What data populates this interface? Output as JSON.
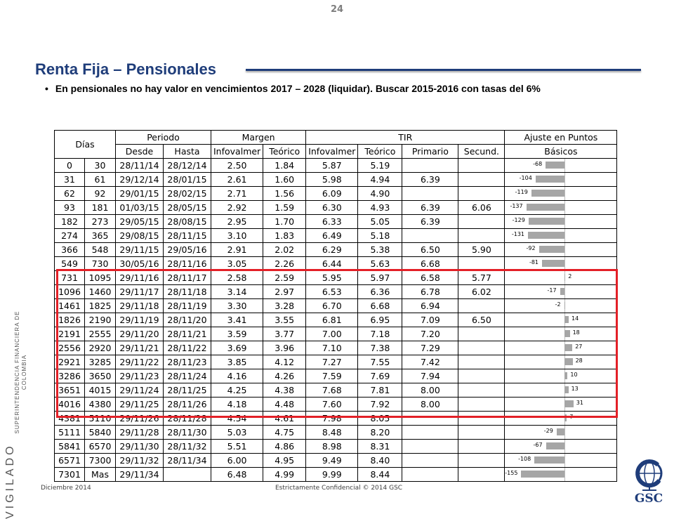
{
  "slide": {
    "page_number": "24",
    "title": "Renta Fija – Pensionales",
    "bullet": "En pensionales no hay valor en vencimientos 2017 – 2028 (liquidar). Buscar 2015-2016 con tasas del 6%",
    "footer_left": "Diciembre 2014",
    "footer_center": "Estrictamente Confidencial © 2014 GSC",
    "logo_text": "GSC",
    "side_vigilado": "VIGILADO",
    "side_super": "SUPERINTENDENCIA FINANCIERA DE COLOMBIA"
  },
  "table": {
    "headers": {
      "dias": "Días",
      "periodo": "Periodo",
      "margen": "Margen",
      "tir": "TIR",
      "ajuste": "Ajuste en Puntos",
      "basicos": "Básicos",
      "desde": "Desde",
      "hasta": "Hasta",
      "infovalmer": "Infovalmer",
      "teorico": "Teórico",
      "infovalmer2": "Infovalmer",
      "teorico2": "Teórico",
      "primario": "Primario",
      "secund": "Secund."
    },
    "rows": [
      {
        "d1": "0",
        "d2": "30",
        "desde": "28/11/14",
        "hasta": "28/12/14",
        "mi": "2.50",
        "mt": "1.84",
        "ti": "5.87",
        "tt": "5.19",
        "tp": "",
        "ts": "",
        "adj": "-68",
        "adjv": -68
      },
      {
        "d1": "31",
        "d2": "61",
        "desde": "29/12/14",
        "hasta": "28/01/15",
        "mi": "2.61",
        "mt": "1.60",
        "ti": "5.98",
        "tt": "4.94",
        "tp": "6.39",
        "ts": "",
        "adj": "-104",
        "adjv": -104
      },
      {
        "d1": "62",
        "d2": "92",
        "desde": "29/01/15",
        "hasta": "28/02/15",
        "mi": "2.71",
        "mt": "1.56",
        "ti": "6.09",
        "tt": "4.90",
        "tp": "",
        "ts": "",
        "adj": "-119",
        "adjv": -119
      },
      {
        "d1": "93",
        "d2": "181",
        "desde": "01/03/15",
        "hasta": "28/05/15",
        "mi": "2.92",
        "mt": "1.59",
        "ti": "6.30",
        "tt": "4.93",
        "tp": "6.39",
        "ts": "6.06",
        "adj": "-137",
        "adjv": -137
      },
      {
        "d1": "182",
        "d2": "273",
        "desde": "29/05/15",
        "hasta": "28/08/15",
        "mi": "2.95",
        "mt": "1.70",
        "ti": "6.33",
        "tt": "5.05",
        "tp": "6.39",
        "ts": "",
        "adj": "-129",
        "adjv": -129
      },
      {
        "d1": "274",
        "d2": "365",
        "desde": "29/08/15",
        "hasta": "28/11/15",
        "mi": "3.10",
        "mt": "1.83",
        "ti": "6.49",
        "tt": "5.18",
        "tp": "",
        "ts": "",
        "adj": "-131",
        "adjv": -131
      },
      {
        "d1": "366",
        "d2": "548",
        "desde": "29/11/15",
        "hasta": "29/05/16",
        "mi": "2.91",
        "mt": "2.02",
        "ti": "6.29",
        "tt": "5.38",
        "tp": "6.50",
        "ts": "5.90",
        "adj": "-92",
        "adjv": -92
      },
      {
        "d1": "549",
        "d2": "730",
        "desde": "30/05/16",
        "hasta": "28/11/16",
        "mi": "3.05",
        "mt": "2.26",
        "ti": "6.44",
        "tt": "5.63",
        "tp": "6.68",
        "ts": "",
        "adj": "-81",
        "adjv": -81
      },
      {
        "d1": "731",
        "d2": "1095",
        "desde": "29/11/16",
        "hasta": "28/11/17",
        "mi": "2.58",
        "mt": "2.59",
        "ti": "5.95",
        "tt": "5.97",
        "tp": "6.58",
        "ts": "5.77",
        "adj": "2",
        "adjv": 2
      },
      {
        "d1": "1096",
        "d2": "1460",
        "desde": "29/11/17",
        "hasta": "28/11/18",
        "mi": "3.14",
        "mt": "2.97",
        "ti": "6.53",
        "tt": "6.36",
        "tp": "6.78",
        "ts": "6.02",
        "adj": "-17",
        "adjv": -17
      },
      {
        "d1": "1461",
        "d2": "1825",
        "desde": "29/11/18",
        "hasta": "28/11/19",
        "mi": "3.30",
        "mt": "3.28",
        "ti": "6.70",
        "tt": "6.68",
        "tp": "6.94",
        "ts": "",
        "adj": "-2",
        "adjv": -2
      },
      {
        "d1": "1826",
        "d2": "2190",
        "desde": "29/11/19",
        "hasta": "28/11/20",
        "mi": "3.41",
        "mt": "3.55",
        "ti": "6.81",
        "tt": "6.95",
        "tp": "7.09",
        "ts": "6.50",
        "adj": "14",
        "adjv": 14
      },
      {
        "d1": "2191",
        "d2": "2555",
        "desde": "29/11/20",
        "hasta": "28/11/21",
        "mi": "3.59",
        "mt": "3.77",
        "ti": "7.00",
        "tt": "7.18",
        "tp": "7.20",
        "ts": "",
        "adj": "18",
        "adjv": 18
      },
      {
        "d1": "2556",
        "d2": "2920",
        "desde": "29/11/21",
        "hasta": "28/11/22",
        "mi": "3.69",
        "mt": "3.96",
        "ti": "7.10",
        "tt": "7.38",
        "tp": "7.29",
        "ts": "",
        "adj": "27",
        "adjv": 27
      },
      {
        "d1": "2921",
        "d2": "3285",
        "desde": "29/11/22",
        "hasta": "28/11/23",
        "mi": "3.85",
        "mt": "4.12",
        "ti": "7.27",
        "tt": "7.55",
        "tp": "7.42",
        "ts": "",
        "adj": "28",
        "adjv": 28
      },
      {
        "d1": "3286",
        "d2": "3650",
        "desde": "29/11/23",
        "hasta": "28/11/24",
        "mi": "4.16",
        "mt": "4.26",
        "ti": "7.59",
        "tt": "7.69",
        "tp": "7.94",
        "ts": "",
        "adj": "10",
        "adjv": 10
      },
      {
        "d1": "3651",
        "d2": "4015",
        "desde": "29/11/24",
        "hasta": "28/11/25",
        "mi": "4.25",
        "mt": "4.38",
        "ti": "7.68",
        "tt": "7.81",
        "tp": "8.00",
        "ts": "",
        "adj": "13",
        "adjv": 13
      },
      {
        "d1": "4016",
        "d2": "4380",
        "desde": "29/11/25",
        "hasta": "28/11/26",
        "mi": "4.18",
        "mt": "4.48",
        "ti": "7.60",
        "tt": "7.92",
        "tp": "8.00",
        "ts": "",
        "adj": "31",
        "adjv": 31
      },
      {
        "d1": "4381",
        "d2": "5110",
        "desde": "29/11/26",
        "hasta": "28/11/28",
        "mi": "4.54",
        "mt": "4.61",
        "ti": "7.98",
        "tt": "8.05",
        "tp": "",
        "ts": "",
        "adj": "7",
        "adjv": 7
      },
      {
        "d1": "5111",
        "d2": "5840",
        "desde": "29/11/28",
        "hasta": "28/11/30",
        "mi": "5.03",
        "mt": "4.75",
        "ti": "8.48",
        "tt": "8.20",
        "tp": "",
        "ts": "",
        "adj": "-29",
        "adjv": -29
      },
      {
        "d1": "5841",
        "d2": "6570",
        "desde": "29/11/30",
        "hasta": "28/11/32",
        "mi": "5.51",
        "mt": "4.86",
        "ti": "8.98",
        "tt": "8.31",
        "tp": "",
        "ts": "",
        "adj": "-67",
        "adjv": -67
      },
      {
        "d1": "6571",
        "d2": "7300",
        "desde": "29/11/32",
        "hasta": "28/11/34",
        "mi": "6.00",
        "mt": "4.95",
        "ti": "9.49",
        "tt": "8.40",
        "tp": "",
        "ts": "",
        "adj": "-108",
        "adjv": -108
      },
      {
        "d1": "7301",
        "d2": "Mas",
        "desde": "29/11/34",
        "hasta": "",
        "mi": "6.48",
        "mt": "4.99",
        "ti": "9.99",
        "tt": "8.44",
        "tp": "",
        "ts": "",
        "adj": "-155",
        "adjv": -155
      }
    ],
    "colors": {
      "bar": "#a6a6a6",
      "highlight": "#e32027",
      "title": "#1f3d7a"
    }
  }
}
